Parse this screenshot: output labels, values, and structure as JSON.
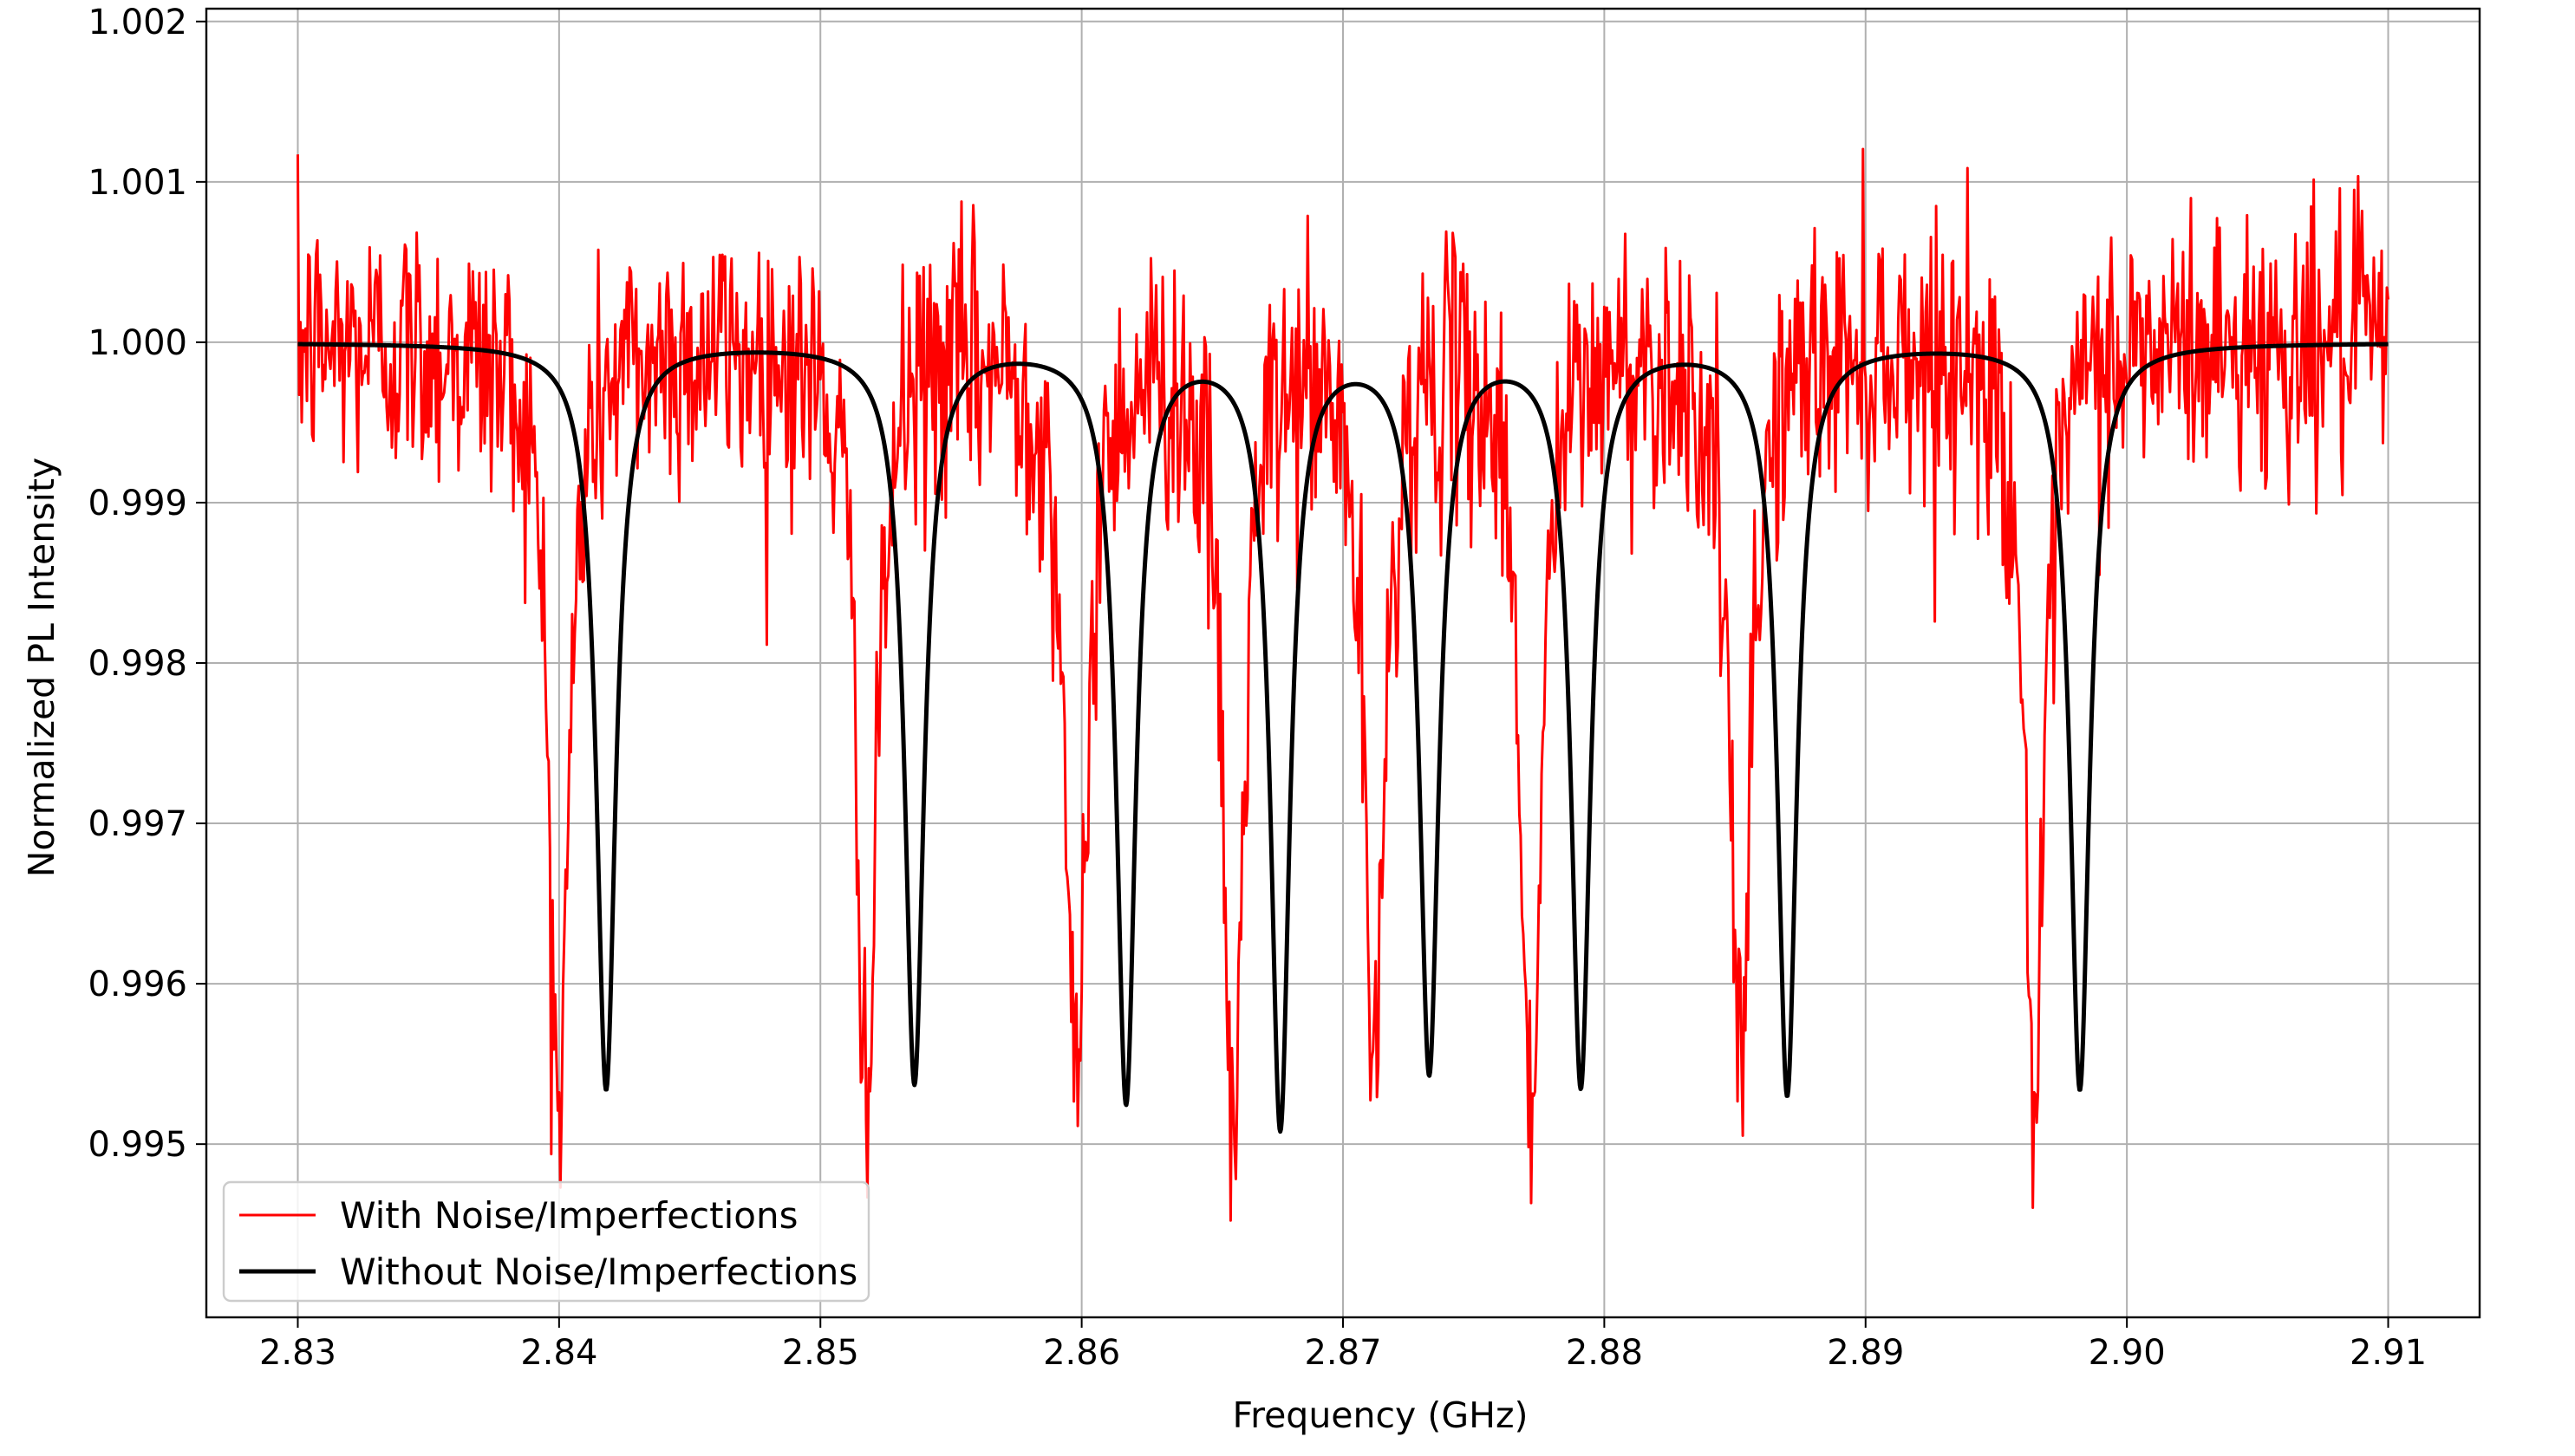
{
  "chart_data": {
    "type": "line",
    "xlabel": "Frequency (GHz)",
    "ylabel": "Normalized PL Intensity",
    "xlim": [
      2.8265,
      2.9135
    ],
    "ylim": [
      0.99392,
      1.00208
    ],
    "x_ticks": [
      2.83,
      2.84,
      2.85,
      2.86,
      2.87,
      2.88,
      2.89,
      2.9,
      2.91
    ],
    "x_tick_labels": [
      "2.83",
      "2.84",
      "2.85",
      "2.86",
      "2.87",
      "2.88",
      "2.89",
      "2.90",
      "2.91"
    ],
    "y_ticks": [
      0.995,
      0.996,
      0.997,
      0.998,
      0.999,
      1.0,
      1.001,
      1.002
    ],
    "y_tick_labels": [
      "0.995",
      "0.996",
      "0.997",
      "0.998",
      "0.999",
      "1.000",
      "1.001",
      "1.002"
    ],
    "grid": true,
    "legend_position": "bottom-left",
    "x_range": [
      2.83,
      2.91
    ],
    "series": [
      {
        "name": "With Noise/Imperfections",
        "color": "#ff0000",
        "noise_amplitude": 0.00045,
        "dips": [
          {
            "center": 2.84,
            "depth": 0.0048,
            "width": 0.00045
          },
          {
            "center": 2.8518,
            "depth": 0.0047,
            "width": 0.00045
          },
          {
            "center": 2.8598,
            "depth": 0.0049,
            "width": 0.00045
          },
          {
            "center": 2.8658,
            "depth": 0.005,
            "width": 0.00045
          },
          {
            "center": 2.8712,
            "depth": 0.0046,
            "width": 0.00045
          },
          {
            "center": 2.8772,
            "depth": 0.0049,
            "width": 0.00045
          },
          {
            "center": 2.8852,
            "depth": 0.0047,
            "width": 0.00045
          },
          {
            "center": 2.8965,
            "depth": 0.0048,
            "width": 0.00045
          }
        ]
      },
      {
        "name": "Without Noise/Imperfections",
        "color": "#000000",
        "dips": [
          {
            "center": 2.8418,
            "depth": 0.00465,
            "width": 0.00045
          },
          {
            "center": 2.8536,
            "depth": 0.0046,
            "width": 0.00045
          },
          {
            "center": 2.8617,
            "depth": 0.0047,
            "width": 0.00045
          },
          {
            "center": 2.8676,
            "depth": 0.00485,
            "width": 0.00045
          },
          {
            "center": 2.8733,
            "depth": 0.0045,
            "width": 0.00045
          },
          {
            "center": 2.8791,
            "depth": 0.0046,
            "width": 0.00045
          },
          {
            "center": 2.887,
            "depth": 0.00467,
            "width": 0.00045
          },
          {
            "center": 2.8982,
            "depth": 0.00465,
            "width": 0.00045
          }
        ]
      }
    ]
  }
}
